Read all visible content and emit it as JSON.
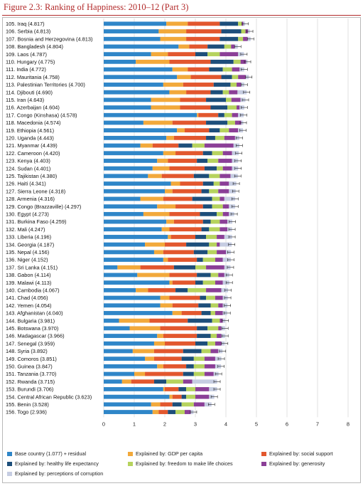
{
  "figure": {
    "title": "Figure 2.3: Ranking of Happiness: 2010–12 (Part 3)"
  },
  "colors": {
    "residual": "#2f86c8",
    "gdp": "#f2a93b",
    "social_support": "#e2572e",
    "life_expectancy": "#1d4e7a",
    "freedom": "#b6d35e",
    "generosity": "#8b3f97",
    "corruption": "#c6cde2",
    "title": "#b22a2a"
  },
  "chart_data": {
    "type": "bar",
    "orientation": "horizontal",
    "stacked": true,
    "xlim": [
      0,
      8
    ],
    "xticks": [
      0,
      1,
      2,
      3,
      4,
      5,
      6,
      7,
      8
    ],
    "grid": "vertical",
    "legend_position": "bottom",
    "series": [
      {
        "key": "residual",
        "name": "Base country (1.077) + residual"
      },
      {
        "key": "gdp",
        "name": "Explained by: GDP per capita"
      },
      {
        "key": "social_support",
        "name": "Explained by: social support"
      },
      {
        "key": "life_expectancy",
        "name": "Explained by: healthy life expectancy"
      },
      {
        "key": "freedom",
        "name": "Explained by: freedom to make life choices"
      },
      {
        "key": "generosity",
        "name": "Explained by: generosity"
      },
      {
        "key": "corruption",
        "name": "Explained by: perceptions of corruption"
      }
    ],
    "rows": [
      {
        "label": "105. Iraq (4.817)",
        "residual": 2.05,
        "gdp": 0.7,
        "social_support": 1.05,
        "life_expectancy": 0.6,
        "freedom": 0.12,
        "generosity": 0.05,
        "corruption": 0.06
      },
      {
        "label": "106. Serbia (4.813)",
        "residual": 1.8,
        "gdp": 0.9,
        "social_support": 1.15,
        "life_expectancy": 0.65,
        "freedom": 0.14,
        "generosity": 0.08,
        "corruption": 0.06
      },
      {
        "label": "107. Bosnia and Herzegovina (4.813)",
        "residual": 1.85,
        "gdp": 0.85,
        "social_support": 1.1,
        "life_expectancy": 0.6,
        "freedom": 0.16,
        "generosity": 0.15,
        "corruption": 0.1
      },
      {
        "label": "108. Bangladesh (4.804)",
        "residual": 2.45,
        "gdp": 0.35,
        "social_support": 0.6,
        "life_expectancy": 0.55,
        "freedom": 0.22,
        "generosity": 0.12,
        "corruption": 0.1
      },
      {
        "label": "109. Laos (4.787)",
        "residual": 1.55,
        "gdp": 0.55,
        "social_support": 0.9,
        "life_expectancy": 0.4,
        "freedom": 0.4,
        "generosity": 0.6,
        "corruption": 0.19
      },
      {
        "label": "110. Hungary (4.775)",
        "residual": 1.05,
        "gdp": 1.1,
        "social_support": 1.35,
        "life_expectancy": 0.75,
        "freedom": 0.23,
        "generosity": 0.18,
        "corruption": 0.05
      },
      {
        "label": "111. India (4.772)",
        "residual": 2.25,
        "gdp": 0.5,
        "social_support": 0.7,
        "life_expectancy": 0.45,
        "freedom": 0.3,
        "generosity": 0.25,
        "corruption": 0.15
      },
      {
        "label": "112. Mauritania (4.758)",
        "residual": 2.4,
        "gdp": 0.45,
        "social_support": 1.0,
        "life_expectancy": 0.35,
        "freedom": 0.2,
        "generosity": 0.25,
        "corruption": 0.1
      },
      {
        "label": "113. Palestinian Territories (4.700)",
        "residual": 1.95,
        "gdp": 0.65,
        "social_support": 1.0,
        "life_expectancy": 0.55,
        "freedom": 0.2,
        "generosity": 0.15,
        "corruption": 0.1
      },
      {
        "label": "114. Djibouti (4.690)",
        "residual": 2.15,
        "gdp": 0.55,
        "social_support": 0.8,
        "life_expectancy": 0.4,
        "freedom": 0.2,
        "generosity": 0.28,
        "corruption": 0.3
      },
      {
        "label": "115. Iran (4.643)",
        "residual": 1.55,
        "gdp": 0.95,
        "social_support": 0.85,
        "life_expectancy": 0.65,
        "freedom": 0.18,
        "generosity": 0.3,
        "corruption": 0.16
      },
      {
        "label": "116. Azerbaijan (4.604)",
        "residual": 1.55,
        "gdp": 0.95,
        "social_support": 1.0,
        "life_expectancy": 0.55,
        "freedom": 0.3,
        "generosity": 0.1,
        "corruption": 0.15
      },
      {
        "label": "117. Congo (Kinshasa) (4.578)",
        "residual": 3.05,
        "gdp": 0.05,
        "social_support": 0.65,
        "life_expectancy": 0.2,
        "freedom": 0.25,
        "generosity": 0.2,
        "corruption": 0.18
      },
      {
        "label": "118. Macedonia (4.574)",
        "residual": 1.3,
        "gdp": 0.95,
        "social_support": 1.1,
        "life_expectancy": 0.7,
        "freedom": 0.25,
        "generosity": 0.2,
        "corruption": 0.07
      },
      {
        "label": "119. Ethiopia (4.561)",
        "residual": 2.4,
        "gdp": 0.25,
        "social_support": 0.8,
        "life_expectancy": 0.35,
        "freedom": 0.3,
        "generosity": 0.3,
        "corruption": 0.16
      },
      {
        "label": "120. Uganda (4.443)",
        "residual": 2.05,
        "gdp": 0.25,
        "social_support": 1.05,
        "life_expectancy": 0.3,
        "freedom": 0.3,
        "generosity": 0.35,
        "corruption": 0.14
      },
      {
        "label": "121. Myanmar (4.439)",
        "residual": 1.2,
        "gdp": 0.4,
        "social_support": 0.85,
        "life_expectancy": 0.45,
        "freedom": 0.4,
        "generosity": 0.95,
        "corruption": 0.19
      },
      {
        "label": "122. Cameroon (4.420)",
        "residual": 1.95,
        "gdp": 0.4,
        "social_support": 0.9,
        "life_expectancy": 0.3,
        "freedom": 0.35,
        "generosity": 0.3,
        "corruption": 0.22
      },
      {
        "label": "123. Kenya (4.403)",
        "residual": 1.75,
        "gdp": 0.35,
        "social_support": 0.95,
        "life_expectancy": 0.35,
        "freedom": 0.35,
        "generosity": 0.45,
        "corruption": 0.2
      },
      {
        "label": "124. Sudan (4.401)",
        "residual": 1.6,
        "gdp": 0.55,
        "social_support": 1.15,
        "life_expectancy": 0.4,
        "freedom": 0.2,
        "generosity": 0.3,
        "corruption": 0.2
      },
      {
        "label": "125. Tajikistan (4.380)",
        "residual": 1.45,
        "gdp": 0.45,
        "social_support": 1.05,
        "life_expectancy": 0.5,
        "freedom": 0.35,
        "generosity": 0.35,
        "corruption": 0.24
      },
      {
        "label": "126. Haiti (4.341)",
        "residual": 2.2,
        "gdp": 0.3,
        "social_support": 0.75,
        "life_expectancy": 0.35,
        "freedom": 0.2,
        "generosity": 0.3,
        "corruption": 0.24
      },
      {
        "label": "127. Sierra Leone (4.318)",
        "residual": 2.0,
        "gdp": 0.25,
        "social_support": 0.95,
        "life_expectancy": 0.25,
        "freedom": 0.3,
        "generosity": 0.35,
        "corruption": 0.22
      },
      {
        "label": "128. Armenia (4.316)",
        "residual": 1.2,
        "gdp": 0.75,
        "social_support": 0.95,
        "life_expectancy": 0.65,
        "freedom": 0.25,
        "generosity": 0.15,
        "corruption": 0.35
      },
      {
        "label": "129. Congo (Brazzaville) (4.297)",
        "residual": 1.75,
        "gdp": 0.6,
        "social_support": 0.9,
        "life_expectancy": 0.3,
        "freedom": 0.35,
        "generosity": 0.2,
        "corruption": 0.2
      },
      {
        "label": "130. Egypt (4.273)",
        "residual": 1.3,
        "gdp": 0.85,
        "social_support": 1.0,
        "life_expectancy": 0.55,
        "freedom": 0.2,
        "generosity": 0.2,
        "corruption": 0.17
      },
      {
        "label": "131. Burkina Faso (4.259)",
        "residual": 2.05,
        "gdp": 0.25,
        "social_support": 0.95,
        "life_expectancy": 0.25,
        "freedom": 0.3,
        "generosity": 0.25,
        "corruption": 0.16
      },
      {
        "label": "132. Mali (4.247)",
        "residual": 1.9,
        "gdp": 0.25,
        "social_support": 1.05,
        "life_expectancy": 0.25,
        "freedom": 0.35,
        "generosity": 0.25,
        "corruption": 0.15
      },
      {
        "label": "133. Liberia (4.196)",
        "residual": 2.1,
        "gdp": 0.1,
        "social_support": 0.8,
        "life_expectancy": 0.35,
        "freedom": 0.35,
        "generosity": 0.25,
        "corruption": 0.25
      },
      {
        "label": "134. Georgia (4.187)",
        "residual": 1.35,
        "gdp": 0.65,
        "social_support": 0.7,
        "life_expectancy": 0.75,
        "freedom": 0.25,
        "generosity": 0.1,
        "corruption": 0.39
      },
      {
        "label": "135. Nepal (4.156)",
        "residual": 1.65,
        "gdp": 0.3,
        "social_support": 1.0,
        "life_expectancy": 0.45,
        "freedom": 0.3,
        "generosity": 0.3,
        "corruption": 0.16
      },
      {
        "label": "136. Niger (4.152)",
        "residual": 1.95,
        "gdp": 0.15,
        "social_support": 0.95,
        "life_expectancy": 0.2,
        "freedom": 0.4,
        "generosity": 0.25,
        "corruption": 0.26
      },
      {
        "label": "137. Sri Lanka (4.151)",
        "residual": 0.45,
        "gdp": 0.75,
        "social_support": 1.1,
        "life_expectancy": 0.7,
        "freedom": 0.35,
        "generosity": 0.6,
        "corruption": 0.2
      },
      {
        "label": "138. Gabon (4.114)",
        "residual": 1.1,
        "gdp": 1.05,
        "social_support": 0.9,
        "life_expectancy": 0.45,
        "freedom": 0.25,
        "generosity": 0.2,
        "corruption": 0.16
      },
      {
        "label": "139. Malawi (4.113)",
        "residual": 2.15,
        "gdp": 0.1,
        "social_support": 0.75,
        "life_expectancy": 0.25,
        "freedom": 0.4,
        "generosity": 0.25,
        "corruption": 0.21
      },
      {
        "label": "140. Cambodia (4.067)",
        "residual": 1.05,
        "gdp": 0.4,
        "social_support": 0.9,
        "life_expectancy": 0.4,
        "freedom": 0.6,
        "generosity": 0.5,
        "corruption": 0.22
      },
      {
        "label": "141. Chad (4.056)",
        "residual": 1.85,
        "gdp": 0.3,
        "social_support": 1.0,
        "life_expectancy": 0.2,
        "freedom": 0.3,
        "generosity": 0.25,
        "corruption": 0.16
      },
      {
        "label": "142. Yemen (4.054)",
        "residual": 1.85,
        "gdp": 0.4,
        "social_support": 0.85,
        "life_expectancy": 0.4,
        "freedom": 0.25,
        "generosity": 0.15,
        "corruption": 0.15
      },
      {
        "label": "143. Afghanistan (4.040)",
        "residual": 2.25,
        "gdp": 0.3,
        "social_support": 0.65,
        "life_expectancy": 0.3,
        "freedom": 0.15,
        "generosity": 0.25,
        "corruption": 0.14
      },
      {
        "label": "144. Bulgaria (3.981)",
        "residual": 0.5,
        "gdp": 1.0,
        "social_support": 1.25,
        "life_expectancy": 0.8,
        "freedom": 0.25,
        "generosity": 0.1,
        "corruption": 0.08
      },
      {
        "label": "145. Botswana (3.970)",
        "residual": 0.85,
        "gdp": 1.0,
        "social_support": 1.2,
        "life_expectancy": 0.35,
        "freedom": 0.35,
        "generosity": 0.1,
        "corruption": 0.12
      },
      {
        "label": "146. Madagascar (3.966)",
        "residual": 1.75,
        "gdp": 0.2,
        "social_support": 1.1,
        "life_expectancy": 0.45,
        "freedom": 0.2,
        "generosity": 0.15,
        "corruption": 0.12
      },
      {
        "label": "147. Senegal (3.959)",
        "residual": 1.65,
        "gdp": 0.35,
        "social_support": 1.0,
        "life_expectancy": 0.4,
        "freedom": 0.25,
        "generosity": 0.2,
        "corruption": 0.11
      },
      {
        "label": "148. Syria (3.892)",
        "residual": 0.95,
        "gdp": 0.7,
        "social_support": 0.95,
        "life_expectancy": 0.6,
        "freedom": 0.3,
        "generosity": 0.25,
        "corruption": 0.14
      },
      {
        "label": "149. Comoros (3.851)",
        "residual": 1.35,
        "gdp": 0.3,
        "social_support": 0.9,
        "life_expectancy": 0.4,
        "freedom": 0.35,
        "generosity": 0.35,
        "corruption": 0.2
      },
      {
        "label": "150. Guinea (3.847)",
        "residual": 1.75,
        "gdp": 0.2,
        "social_support": 0.75,
        "life_expectancy": 0.25,
        "freedom": 0.35,
        "generosity": 0.35,
        "corruption": 0.19
      },
      {
        "label": "151. Tanzania (3.770)",
        "residual": 1.0,
        "gdp": 0.35,
        "social_support": 1.25,
        "life_expectancy": 0.35,
        "freedom": 0.35,
        "generosity": 0.3,
        "corruption": 0.16
      },
      {
        "label": "152. Rwanda (3.715)",
        "residual": 0.6,
        "gdp": 0.3,
        "social_support": 0.75,
        "life_expectancy": 0.4,
        "freedom": 0.55,
        "generosity": 0.3,
        "corruption": 0.81
      },
      {
        "label": "153. Burundi (3.706)",
        "residual": 1.95,
        "gdp": 0.05,
        "social_support": 0.45,
        "life_expectancy": 0.25,
        "freedom": 0.3,
        "generosity": 0.45,
        "corruption": 0.26
      },
      {
        "label": "154. Central African Republic (3.623)",
        "residual": 2.15,
        "gdp": 0.1,
        "social_support": 0.3,
        "life_expectancy": 0.15,
        "freedom": 0.3,
        "generosity": 0.45,
        "corruption": 0.17
      },
      {
        "label": "155. Benin (3.528)",
        "residual": 1.55,
        "gdp": 0.3,
        "social_support": 0.4,
        "life_expectancy": 0.3,
        "freedom": 0.4,
        "generosity": 0.35,
        "corruption": 0.23
      },
      {
        "label": "156. Togo (2.936)",
        "residual": 1.6,
        "gdp": 0.2,
        "social_support": 0.3,
        "life_expectancy": 0.25,
        "freedom": 0.3,
        "generosity": 0.2,
        "corruption": 0.09
      }
    ]
  }
}
